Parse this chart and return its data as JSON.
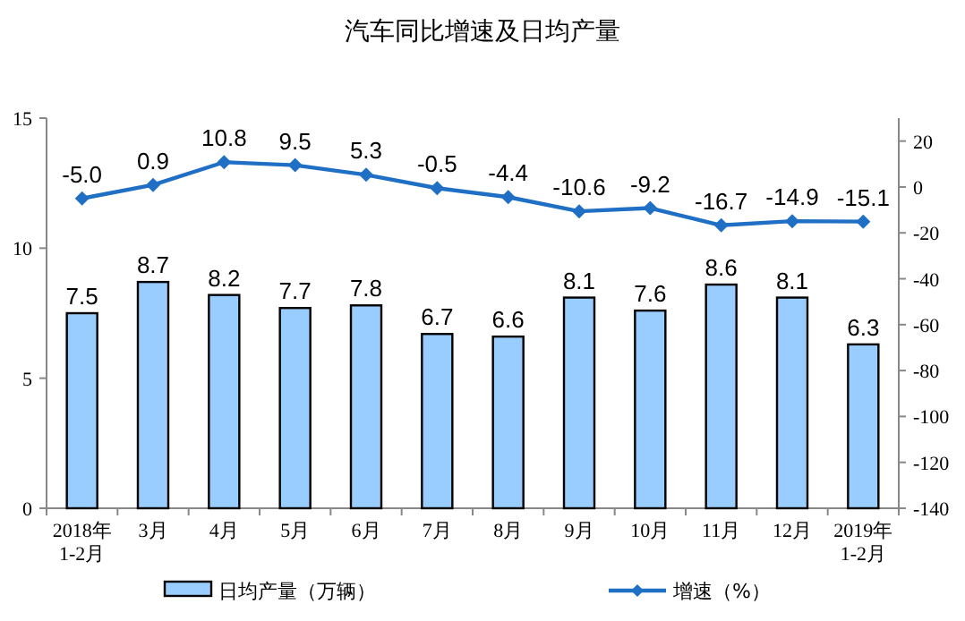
{
  "chart_data": {
    "type": "bar",
    "title": "汽车同比增速及日均产量",
    "categories": [
      "2018年\n1-2月",
      "3月",
      "4月",
      "5月",
      "6月",
      "7月",
      "8月",
      "9月",
      "10月",
      "11月",
      "12月",
      "2019年\n1-2月"
    ],
    "series": [
      {
        "name": "日均产量（万辆）",
        "color": "#99ccff",
        "values": [
          7.5,
          8.7,
          8.2,
          7.7,
          7.8,
          6.7,
          6.6,
          8.1,
          7.6,
          8.6,
          8.1,
          6.3
        ]
      },
      {
        "name": "增速（%）",
        "type": "line",
        "axis": "y2",
        "color": "#1f6fc5",
        "marker": "diamond",
        "values": [
          -5.0,
          0.9,
          10.8,
          9.5,
          5.3,
          -0.5,
          -4.4,
          -10.6,
          -9.2,
          -16.7,
          -14.9,
          -15.1
        ],
        "value_labels": [
          "-5.0",
          "0.9",
          "10.8",
          "9.5",
          "5.3",
          "-0.5",
          "-4.4",
          "-10.6",
          "-9.2",
          "-16.7",
          "-14.9",
          "-15.1"
        ]
      }
    ],
    "ylim": [
      0,
      15
    ],
    "yticks": [
      0,
      5,
      10,
      15
    ],
    "y2lim": [
      -140,
      30
    ],
    "y2ticks": [
      -140,
      -120,
      -100,
      -80,
      -60,
      -40,
      -20,
      0,
      20
    ],
    "data_labels": true,
    "legend": "bottom"
  }
}
